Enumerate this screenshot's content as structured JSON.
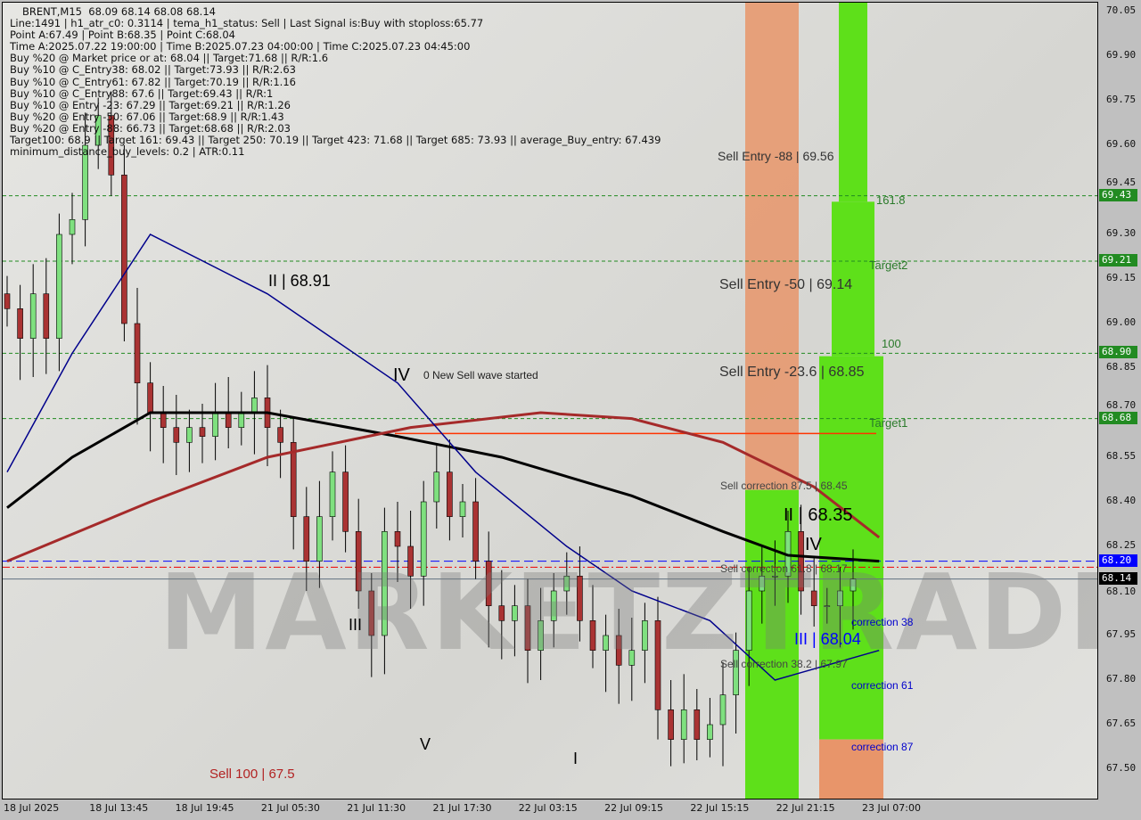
{
  "header": {
    "symbol_line": "BRENT,M15  68.09 68.14 68.08 68.14",
    "info_lines": [
      "Line:1491 | h1_atr_c0: 0.3114 | tema_h1_status: Sell | Last Signal is:Buy with stoploss:65.77",
      "Point A:67.49 | Point B:68.35 | Point C:68.04",
      "Time A:2025.07.22 19:00:00 | Time B:2025.07.23 04:00:00 | Time C:2025.07.23 04:45:00",
      "Buy %20 @ Market price or at: 68.04 || Target:71.68 || R/R:1.6",
      "Buy %10 @ C_Entry38: 68.02 || Target:73.93 || R/R:2.63",
      "Buy %10 @ C_Entry61: 67.82 || Target:70.19 || R/R:1.16",
      "Buy %10 @ C_Entry88: 67.6 || Target:69.43 || R/R:1",
      "Buy %10 @ Entry -23: 67.29 || Target:69.21 || R/R:1.26",
      "Buy %20 @ Entry -50: 67.06 || Target:68.9 || R/R:1.43",
      "Buy %20 @ Entry -88: 66.73 || Target:68.68 || R/R:2.03",
      "Target100: 68.9 || Target 161: 69.43 || Target 250: 70.19 || Target 423: 71.68 || Target 685: 73.93 || average_Buy_entry: 67.439",
      "minimum_distance_buy_levels: 0.2 | ATR:0.11"
    ]
  },
  "watermark": "MARKETZTRADE",
  "chart_data": {
    "type": "candlestick",
    "symbol": "BRENT",
    "timeframe": "M15",
    "ylim": [
      67.4,
      70.1
    ],
    "y_ticks": [
      70.05,
      69.9,
      69.75,
      69.6,
      69.45,
      69.3,
      69.15,
      69.0,
      68.85,
      68.7,
      68.55,
      68.4,
      68.25,
      68.1,
      67.95,
      67.8,
      67.65,
      67.5
    ],
    "x_tick_labels": [
      "18 Jul 2025",
      "18 Jul 13:45",
      "18 Jul 19:45",
      "21 Jul 05:30",
      "21 Jul 11:30",
      "21 Jul 17:30",
      "22 Jul 03:15",
      "22 Jul 09:15",
      "22 Jul 15:15",
      "22 Jul 21:15",
      "23 Jul 07:00"
    ],
    "closes": [
      69.05,
      68.95,
      69.1,
      68.95,
      69.3,
      69.35,
      69.6,
      69.7,
      69.5,
      69.0,
      68.8,
      68.7,
      68.65,
      68.6,
      68.65,
      68.62,
      68.7,
      68.65,
      68.7,
      68.75,
      68.65,
      68.6,
      68.35,
      68.2,
      68.35,
      68.5,
      68.3,
      68.1,
      67.95,
      68.3,
      68.25,
      68.15,
      68.4,
      68.5,
      68.35,
      68.4,
      68.2,
      68.05,
      68.0,
      68.05,
      67.9,
      68.0,
      68.1,
      68.15,
      68.0,
      67.9,
      67.95,
      67.85,
      67.9,
      68.0,
      67.7,
      67.6,
      67.7,
      67.6,
      67.65,
      67.75,
      67.9,
      68.1,
      68.15,
      68.15,
      68.3,
      68.1,
      68.05,
      68.05,
      68.1,
      68.14
    ],
    "series": [
      {
        "color": "#000000",
        "points": [
          [
            0,
            68.38
          ],
          [
            5,
            68.55
          ],
          [
            11,
            68.7
          ],
          [
            20,
            68.7
          ],
          [
            30,
            68.62
          ],
          [
            38,
            68.55
          ],
          [
            48,
            68.42
          ],
          [
            55,
            68.3
          ],
          [
            60,
            68.22
          ],
          [
            67,
            68.2
          ]
        ]
      },
      {
        "color": "#a52a2a",
        "points": [
          [
            0,
            68.2
          ],
          [
            11,
            68.4
          ],
          [
            20,
            68.55
          ],
          [
            31,
            68.65
          ],
          [
            41,
            68.7
          ],
          [
            48,
            68.68
          ],
          [
            55,
            68.6
          ],
          [
            62,
            68.45
          ],
          [
            67,
            68.28
          ]
        ]
      },
      {
        "color": "#00008b",
        "points": [
          [
            0,
            68.5
          ],
          [
            5,
            68.9
          ],
          [
            11,
            69.3
          ],
          [
            20,
            69.1
          ],
          [
            30,
            68.8
          ],
          [
            36,
            68.5
          ],
          [
            43,
            68.25
          ],
          [
            48,
            68.1
          ],
          [
            54,
            68.0
          ],
          [
            59,
            67.8
          ],
          [
            67,
            67.9
          ]
        ]
      }
    ],
    "levels": [
      {
        "price": 69.43,
        "badge": "69.43",
        "label": "161.8",
        "color": "#228b22"
      },
      {
        "price": 69.21,
        "badge": "69.21",
        "label": "Target2",
        "color": "#228b22"
      },
      {
        "price": 68.9,
        "badge": "68.90",
        "label": "100",
        "color": "#228b22"
      },
      {
        "price": 68.68,
        "badge": "68.68",
        "label": "Target1",
        "color": "#228b22"
      },
      {
        "price": 68.2,
        "badge": "68.20",
        "label": "",
        "color": "#0000ff"
      },
      {
        "price": 68.14,
        "badge": "68.14",
        "label": "",
        "color": "#000000"
      }
    ],
    "annotations": [
      {
        "text": "Sell Entry -88 | 69.56",
        "price": 69.56
      },
      {
        "text": "Sell Entry -50 | 69.14",
        "price": 69.14
      },
      {
        "text": "Sell Entry -23.6 | 68.85",
        "price": 68.85
      },
      {
        "text": "Sell correction 87.5 | 68.45",
        "price": 68.45
      },
      {
        "text": "Sell correction 61.8 | 68.17",
        "price": 68.17
      },
      {
        "text": "Sell correction 38.2 | 67.97",
        "price": 67.92
      },
      {
        "text": "II | 68.35",
        "price": 68.35
      },
      {
        "text": "IV",
        "price": 68.25
      },
      {
        "text": "II | 68.91",
        "price": 69.14
      },
      {
        "text": "IV",
        "price": 68.82
      },
      {
        "text": "0 New Sell wave started",
        "price": 68.82
      },
      {
        "text": "III",
        "price": 67.98
      },
      {
        "text": "V",
        "price": 67.58
      },
      {
        "text": "I",
        "price": 67.53
      },
      {
        "text": "III | 68.04",
        "price": 67.92
      },
      {
        "text": "correction 38",
        "price": 67.99
      },
      {
        "text": "correction 61",
        "price": 67.79
      },
      {
        "text": "correction 87",
        "price": 67.57
      },
      {
        "text": "Sell 100 | 67.5",
        "price": 67.48
      }
    ],
    "zones": [
      {
        "color": "#e8956a",
        "price_from": 68.44,
        "price_to": 70.1
      },
      {
        "color": "#5ee01a",
        "price_from": 67.4,
        "price_to": 68.44
      },
      {
        "color": "#5ee01a",
        "price_from": 69.41,
        "price_to": 70.1
      },
      {
        "color": "#5ee01a",
        "price_from": 68.89,
        "price_to": 69.41
      },
      {
        "color": "#5ee01a",
        "price_from": 67.6,
        "price_to": 68.89
      },
      {
        "color": "#e8956a",
        "price_from": 67.4,
        "price_to": 67.6
      }
    ]
  }
}
